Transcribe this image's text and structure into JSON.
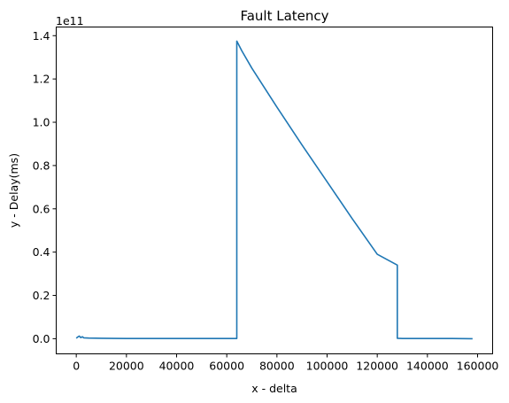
{
  "chart_data": {
    "type": "line",
    "title": "Fault Latency",
    "xlabel": "x - delta",
    "ylabel": "y - Delay(ms)",
    "y_offset_label": "1e11",
    "xlim": [
      -8000,
      166000
    ],
    "ylim": [
      -0.07,
      1.44
    ],
    "y_scale_factor": 100000000000,
    "grid": false,
    "x_ticks": [
      0,
      20000,
      40000,
      60000,
      80000,
      100000,
      120000,
      140000,
      160000
    ],
    "x_tick_labels": [
      "0",
      "20000",
      "40000",
      "60000",
      "80000",
      "100000",
      "120000",
      "140000",
      "160000"
    ],
    "y_ticks": [
      0.0,
      0.2,
      0.4,
      0.6,
      0.8,
      1.0,
      1.2,
      1.4
    ],
    "y_tick_labels": [
      "0.0",
      "0.2",
      "0.4",
      "0.6",
      "0.8",
      "1.0",
      "1.2",
      "1.4"
    ],
    "series": [
      {
        "color": "#1f77b4",
        "x": [
          0,
          600,
          1200,
          1800,
          2400,
          3000,
          5000,
          10000,
          20000,
          30000,
          40000,
          50000,
          60000,
          64000,
          64000,
          66000,
          70000,
          80000,
          90000,
          100000,
          110000,
          120000,
          128000,
          128000,
          130000,
          140000,
          150000,
          158000
        ],
        "y": [
          0.002,
          0.008,
          0.012,
          0.005,
          0.009,
          0.004,
          0.003,
          0.002,
          0.001,
          0.001,
          0.001,
          0.001,
          0.001,
          0.001,
          1.375,
          1.33,
          1.25,
          1.07,
          0.895,
          0.725,
          0.555,
          0.39,
          0.34,
          0.002,
          0.001,
          0.001,
          0.001,
          0.0
        ]
      }
    ]
  }
}
